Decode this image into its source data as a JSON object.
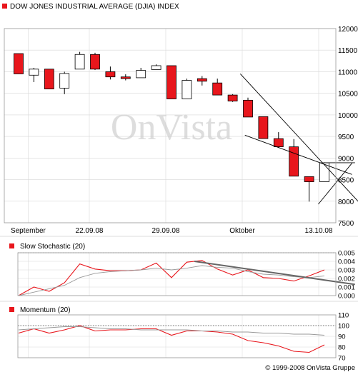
{
  "main": {
    "title": "DOW JONES INDUSTRIAL AVERAGE (DJIA) INDEX",
    "watermark": "OnVista",
    "ylim": [
      7500,
      12000
    ],
    "yticks": [
      12000,
      11500,
      11000,
      10500,
      10000,
      9500,
      9000,
      8500,
      8000,
      7500
    ],
    "xlabels": [
      {
        "t": 1,
        "text": "September"
      },
      {
        "t": 5,
        "text": "22.09.08"
      },
      {
        "t": 10,
        "text": "29.09.08"
      },
      {
        "t": 15,
        "text": "Oktober"
      },
      {
        "t": 20,
        "text": "13.10.08"
      }
    ]
  },
  "stochastic": {
    "title": "Slow Stochastic (20)",
    "ylim": [
      0,
      0.005
    ],
    "yticks": [
      "0.005",
      "0.004",
      "0.003",
      "0.002",
      "0.001",
      "0.000"
    ],
    "ref_level": 0.005
  },
  "momentum": {
    "title": "Momentum (20)",
    "ylim": [
      70,
      110
    ],
    "yticks": [
      110,
      100,
      90,
      80,
      70
    ],
    "ref_level": 100
  },
  "copyright": "© 1999-2008 OnVista Gruppe",
  "colors": {
    "up": "#ffffff",
    "down": "#e8161c",
    "accent": "#e8161c",
    "grid": "#d8d8d8",
    "trend": "#666666"
  },
  "chart_data": [
    {
      "type": "candlestick",
      "title": "DOW JONES INDUSTRIAL AVERAGE (DJIA) INDEX",
      "ylim": [
        7500,
        12000
      ],
      "ohlc": [
        {
          "o": 11420,
          "h": 11420,
          "l": 10950,
          "c": 10950
        },
        {
          "o": 10920,
          "h": 11090,
          "l": 10760,
          "c": 11060
        },
        {
          "o": 11060,
          "h": 11060,
          "l": 10600,
          "c": 10600
        },
        {
          "o": 10620,
          "h": 11000,
          "l": 10480,
          "c": 10960
        },
        {
          "o": 11060,
          "h": 11460,
          "l": 11060,
          "c": 11400
        },
        {
          "o": 11400,
          "h": 11440,
          "l": 11040,
          "c": 11060
        },
        {
          "o": 11000,
          "h": 11120,
          "l": 10820,
          "c": 10880
        },
        {
          "o": 10880,
          "h": 10940,
          "l": 10800,
          "c": 10840
        },
        {
          "o": 10860,
          "h": 11090,
          "l": 10860,
          "c": 11030
        },
        {
          "o": 11050,
          "h": 11170,
          "l": 11050,
          "c": 11140
        },
        {
          "o": 11140,
          "h": 11140,
          "l": 10370,
          "c": 10370
        },
        {
          "o": 10370,
          "h": 10840,
          "l": 10370,
          "c": 10800
        },
        {
          "o": 10840,
          "h": 10900,
          "l": 10680,
          "c": 10780
        },
        {
          "o": 10740,
          "h": 10840,
          "l": 10460,
          "c": 10460
        },
        {
          "o": 10460,
          "h": 10480,
          "l": 10300,
          "c": 10320
        },
        {
          "o": 10340,
          "h": 10400,
          "l": 9950,
          "c": 9950
        },
        {
          "o": 9960,
          "h": 9960,
          "l": 9450,
          "c": 9450
        },
        {
          "o": 9450,
          "h": 9600,
          "l": 9240,
          "c": 9260
        },
        {
          "o": 9260,
          "h": 9440,
          "l": 8580,
          "c": 8580
        },
        {
          "o": 8570,
          "h": 8570,
          "l": 7990,
          "c": 8450
        },
        {
          "o": 8450,
          "h": 8900,
          "l": 8450,
          "c": 8890
        }
      ],
      "trendlines": [
        {
          "from": [
            14.5,
            10950
          ],
          "to": [
            23.5,
            7500
          ]
        },
        {
          "from": [
            14.8,
            9530
          ],
          "to": [
            21.8,
            8620
          ]
        },
        {
          "from": [
            19.6,
            7930
          ],
          "to": [
            21.8,
            8880
          ]
        },
        {
          "from": [
            20.0,
            8890
          ],
          "to": [
            22.0,
            8890
          ]
        }
      ]
    },
    {
      "type": "line",
      "title": "Slow Stochastic (20)",
      "ylim": [
        0,
        0.005
      ],
      "series": [
        {
          "values": [
            0.0,
            0.001,
            0.0005,
            0.0015,
            0.0037,
            0.0031,
            0.0029,
            0.0029,
            0.003,
            0.0038,
            0.0021,
            0.0039,
            0.0041,
            0.0031,
            0.0024,
            0.003,
            0.0021,
            0.002,
            0.0017,
            0.0023,
            0.003
          ]
        },
        {
          "values": [
            0.0,
            0.0004,
            0.0008,
            0.0012,
            0.0021,
            0.0026,
            0.0028,
            0.0029,
            0.003,
            0.0032,
            0.003,
            0.0032,
            0.0035,
            0.0033,
            0.0032,
            0.0028,
            0.0025,
            0.0024,
            0.0022,
            0.0021,
            0.0023
          ]
        }
      ],
      "trendline": {
        "from": [
          11.5,
          0.004
        ],
        "to": [
          22.0,
          0.0013
        ]
      }
    },
    {
      "type": "line",
      "title": "Momentum (20)",
      "ylim": [
        70,
        110
      ],
      "series": [
        {
          "values": [
            93,
            97,
            93,
            96,
            100,
            95,
            96,
            96,
            97,
            97,
            91,
            95,
            95,
            94,
            92,
            86,
            84,
            81,
            76,
            75,
            82
          ]
        },
        {
          "values": [
            96,
            97,
            98,
            99,
            99,
            98,
            97,
            97,
            96,
            96,
            96,
            96,
            95,
            95,
            94,
            94,
            93,
            93,
            92,
            92,
            91
          ]
        }
      ]
    }
  ]
}
